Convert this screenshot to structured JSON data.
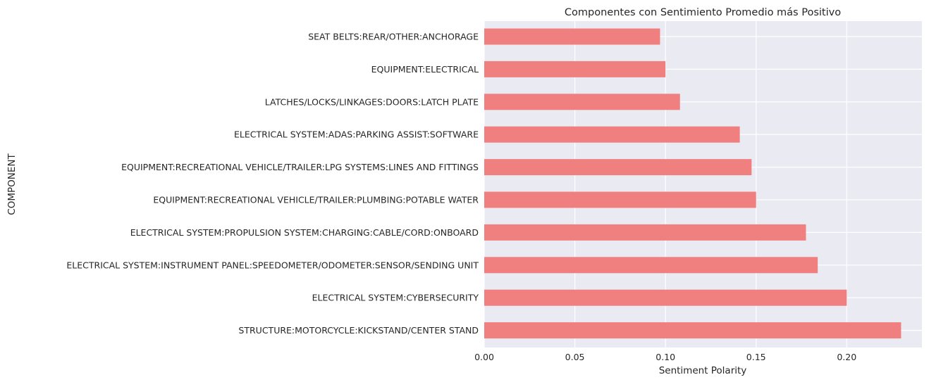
{
  "chart_data": {
    "type": "bar",
    "orientation": "horizontal",
    "title": "Componentes con Sentimiento Promedio más Positivo",
    "xlabel": "Sentiment Polarity",
    "ylabel": "COMPONENT",
    "xlim": [
      0,
      0.2415
    ],
    "xticks": [
      0.0,
      0.05,
      0.1,
      0.15,
      0.2
    ],
    "xtick_labels": [
      "0.00",
      "0.05",
      "0.10",
      "0.15",
      "0.20"
    ],
    "grid": true,
    "bar_color": "#f08080",
    "background": "#eaeaf2",
    "categories": [
      "SEAT BELTS:REAR/OTHER:ANCHORAGE",
      "EQUIPMENT:ELECTRICAL",
      "LATCHES/LOCKS/LINKAGES:DOORS:LATCH PLATE",
      "ELECTRICAL SYSTEM:ADAS:PARKING ASSIST:SOFTWARE",
      "EQUIPMENT:RECREATIONAL VEHICLE/TRAILER:LPG SYSTEMS:LINES AND FITTINGS",
      "EQUIPMENT:RECREATIONAL VEHICLE/TRAILER:PLUMBING:POTABLE WATER",
      "ELECTRICAL SYSTEM:PROPULSION SYSTEM:CHARGING:CABLE/CORD:ONBOARD",
      "ELECTRICAL SYSTEM:INSTRUMENT PANEL:SPEEDOMETER/ODOMETER:SENSOR/SENDING UNIT",
      "ELECTRICAL SYSTEM:CYBERSECURITY",
      "STRUCTURE:MOTORCYCLE:KICKSTAND/CENTER STAND"
    ],
    "values": [
      0.097,
      0.1,
      0.108,
      0.141,
      0.1475,
      0.15,
      0.1775,
      0.184,
      0.2,
      0.23
    ]
  }
}
